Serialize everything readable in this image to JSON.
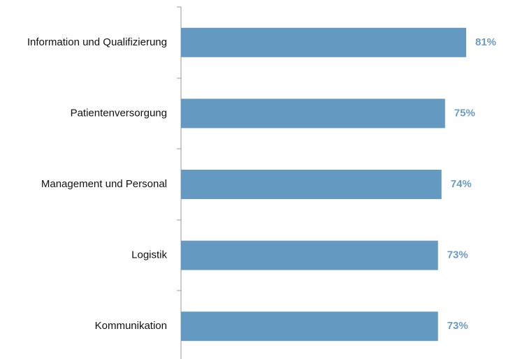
{
  "chart_data": {
    "type": "bar",
    "orientation": "horizontal",
    "categories": [
      "Information und Qualifizierung",
      "Patientenversorgung",
      "Management und Personal",
      "Logistik",
      "Kommunikation"
    ],
    "values": [
      81,
      75,
      74,
      73,
      73
    ],
    "value_labels": [
      "81%",
      "75%",
      "74%",
      "73%",
      "73%"
    ],
    "color": "#6499c1"
  }
}
